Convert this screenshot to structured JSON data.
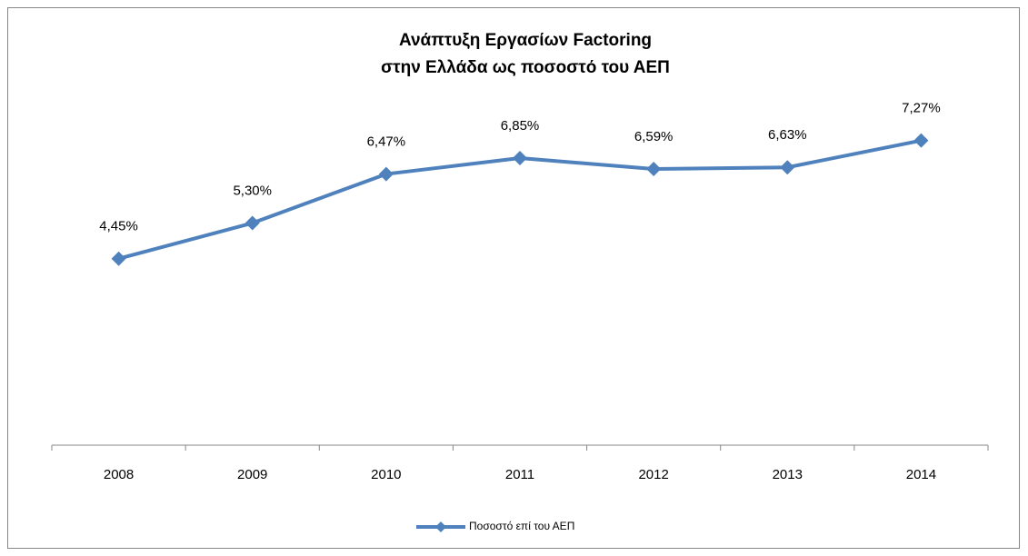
{
  "chart_data": {
    "type": "line",
    "title": [
      "Ανάπτυξη Εργασίων Factoring",
      "στην Ελλάδα ως ποσοστό του ΑΕΠ"
    ],
    "categories": [
      "2008",
      "2009",
      "2010",
      "2011",
      "2012",
      "2013",
      "2014"
    ],
    "series": [
      {
        "name": "Ποσοστό επί του ΑΕΠ",
        "color": "#4f81bd",
        "values": [
          4.45,
          5.3,
          6.47,
          6.85,
          6.59,
          6.63,
          7.27
        ],
        "value_labels": [
          "4,45%",
          "5,30%",
          "6,47%",
          "6,85%",
          "6,59%",
          "6,63%",
          "7,27%"
        ]
      }
    ],
    "ylim": [
      0,
      8
    ],
    "legend": "bottom"
  }
}
